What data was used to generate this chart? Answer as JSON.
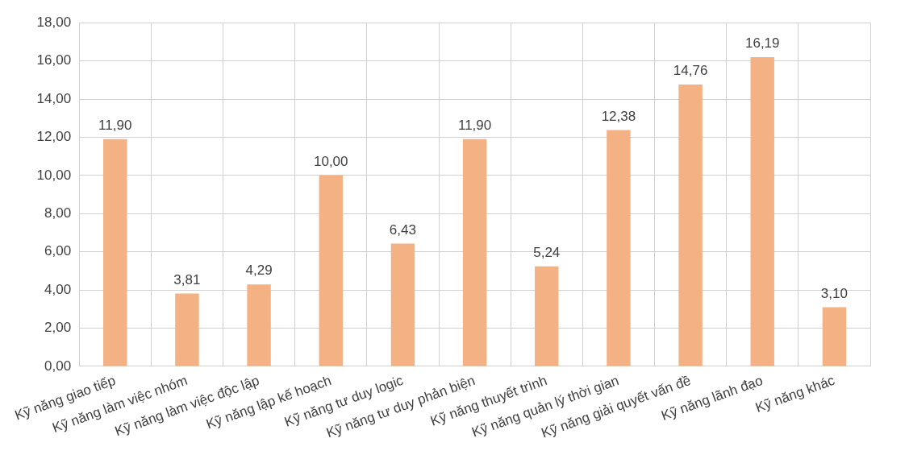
{
  "chart_data": {
    "type": "bar",
    "categories": [
      "Kỹ năng giao tiếp",
      "Kỹ năng làm việc nhóm",
      "Kỹ năng làm việc độc lập",
      "Kỹ năng lập kế hoạch",
      "Kỹ năng tư duy logic",
      "Kỹ năng tư duy phản biện",
      "Kỹ năng thuyết trình",
      "Kỹ năng quản lý thời gian",
      "Kỹ năng giải quyết vấn đề",
      "Kỹ năng lãnh đạo",
      "Kỹ năng khác"
    ],
    "values": [
      11.9,
      3.81,
      4.29,
      10.0,
      6.43,
      11.9,
      5.24,
      12.38,
      14.76,
      16.19,
      3.1
    ],
    "value_labels": [
      "11,90",
      "3,81",
      "4,29",
      "10,00",
      "6,43",
      "11,90",
      "5,24",
      "12,38",
      "14,76",
      "16,19",
      "3,10"
    ],
    "color": "#f4b183",
    "ylim": [
      0,
      18
    ],
    "yticks": [
      {
        "value": 0,
        "label": "0,00"
      },
      {
        "value": 2,
        "label": "2,00"
      },
      {
        "value": 4,
        "label": "4,00"
      },
      {
        "value": 6,
        "label": "6,00"
      },
      {
        "value": 8,
        "label": "8,00"
      },
      {
        "value": 10,
        "label": "10,00"
      },
      {
        "value": 12,
        "label": "12,00"
      },
      {
        "value": 14,
        "label": "14,00"
      },
      {
        "value": 16,
        "label": "16,00"
      },
      {
        "value": 18,
        "label": "18,00"
      }
    ],
    "grid": true
  }
}
